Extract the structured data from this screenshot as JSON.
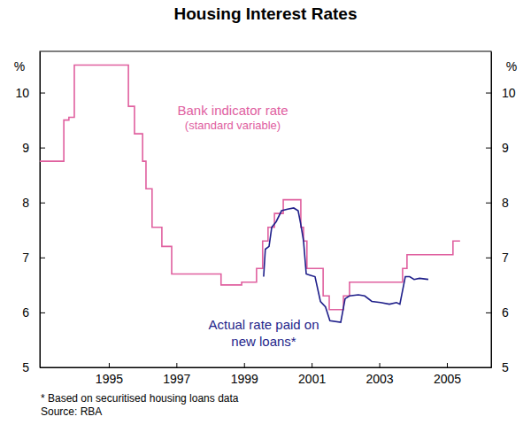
{
  "chart_data": {
    "type": "line",
    "title": "Housing Interest Rates",
    "y_label": "%",
    "y2_label": "%",
    "annotations": [
      "(standard variable)"
    ],
    "footnotes": [
      "*  Based on securitised housing loans data",
      "Source: RBA"
    ],
    "xlim": [
      1993.46,
      2006.81
    ],
    "xticks": [
      {
        "value": 1995.5,
        "label": "1995"
      },
      {
        "value": 1997.5,
        "label": "1997"
      },
      {
        "value": 1999.5,
        "label": "1999"
      },
      {
        "value": 2001.5,
        "label": "2001"
      },
      {
        "value": 2003.5,
        "label": "2003"
      },
      {
        "value": 2005.5,
        "label": "2005"
      }
    ],
    "ylim": [
      5,
      10.75
    ],
    "yticks": [
      5,
      6,
      7,
      8,
      9,
      10
    ],
    "y2lim": [
      5,
      10.75
    ],
    "y2ticks": [
      5,
      6,
      7,
      8,
      9,
      10
    ],
    "grid": false,
    "series": [
      {
        "name": "Bank indicator rate",
        "type": "step",
        "color": "#e0609f",
        "line_style": "solid",
        "marker": "none",
        "x": [
          1993.46,
          1994.17,
          1994.32,
          1994.48,
          1996.08,
          1996.26,
          1996.5,
          1996.6,
          1996.78,
          1997.07,
          1997.36,
          1998.82,
          1999.43,
          1999.87,
          2000.05,
          2000.21,
          2000.4,
          2000.66,
          2001.18,
          2001.26,
          2001.36,
          2001.84,
          2002.02,
          2002.44,
          2002.62,
          2004.19,
          2004.32,
          2005.68,
          2005.89
        ],
        "values": [
          8.75,
          9.5,
          9.55,
          10.5,
          9.75,
          9.25,
          8.75,
          8.25,
          7.55,
          7.2,
          6.7,
          6.5,
          6.55,
          6.8,
          7.3,
          7.55,
          7.8,
          8.05,
          7.55,
          7.3,
          6.8,
          6.3,
          6.05,
          6.3,
          6.55,
          6.8,
          7.05,
          7.3,
          7.3
        ]
      },
      {
        "name": "Actual rate paid on new loans*",
        "type": "line",
        "color": "#1f1f8a",
        "line_style": "solid",
        "marker": "none",
        "x": [
          2000.08,
          2000.13,
          2000.24,
          2000.32,
          2000.45,
          2000.61,
          2000.79,
          2000.97,
          2001.1,
          2001.18,
          2001.26,
          2001.34,
          2001.44,
          2001.6,
          2001.76,
          2001.91,
          2002.04,
          2002.36,
          2002.49,
          2002.62,
          2002.88,
          2003.07,
          2003.28,
          2003.54,
          2003.8,
          2004.01,
          2004.11,
          2004.27,
          2004.4,
          2004.53,
          2004.69,
          2004.95
        ],
        "values": [
          6.65,
          7.15,
          7.2,
          7.55,
          7.65,
          7.85,
          7.88,
          7.9,
          7.85,
          7.6,
          7.3,
          6.7,
          6.68,
          6.65,
          6.2,
          6.1,
          5.85,
          5.82,
          6.25,
          6.3,
          6.32,
          6.3,
          6.2,
          6.18,
          6.15,
          6.18,
          6.15,
          6.65,
          6.65,
          6.6,
          6.62,
          6.6
        ]
      }
    ]
  }
}
